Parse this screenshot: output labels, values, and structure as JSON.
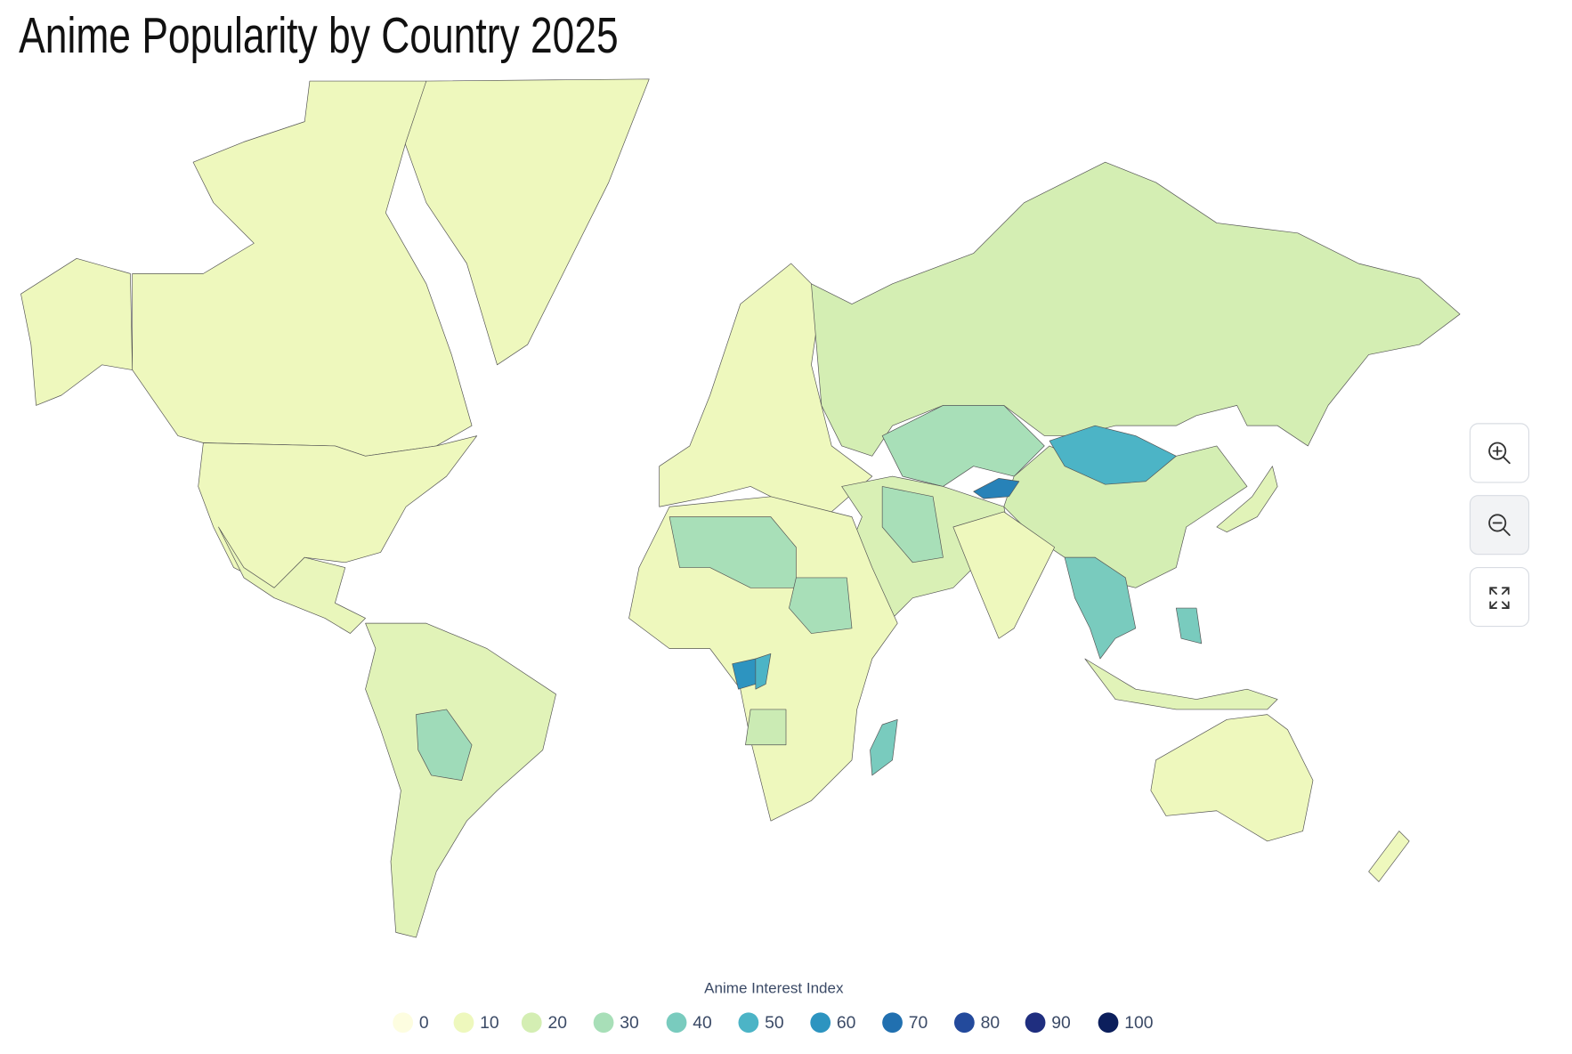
{
  "map": {
    "title": "Anime Popularity by Country 2025",
    "legend": {
      "title": "Anime Interest Index",
      "items": [
        {
          "value": 0,
          "color": "#fdfde0"
        },
        {
          "value": 10,
          "color": "#eef8bd"
        },
        {
          "value": 20,
          "color": "#d4eeb3"
        },
        {
          "value": 30,
          "color": "#a8dfb8"
        },
        {
          "value": 40,
          "color": "#79cbbe"
        },
        {
          "value": 50,
          "color": "#4cb4c6"
        },
        {
          "value": 60,
          "color": "#2d94c0"
        },
        {
          "value": 70,
          "color": "#2170b0"
        },
        {
          "value": 80,
          "color": "#234a9c"
        },
        {
          "value": 90,
          "color": "#1f2e7f"
        },
        {
          "value": 100,
          "color": "#0c1f5c"
        }
      ]
    },
    "regions": [
      {
        "value": 10
      },
      {
        "value": 10
      },
      {
        "value": 10
      },
      {
        "value": 10
      },
      {
        "value": 12
      },
      {
        "value": 15
      },
      {
        "value": 32
      },
      {
        "value": 10
      },
      {
        "value": 20
      },
      {
        "value": 30
      },
      {
        "value": 20
      },
      {
        "value": 50
      },
      {
        "value": 65
      },
      {
        "value": 18
      },
      {
        "value": 30
      },
      {
        "value": 10
      },
      {
        "value": 40
      },
      {
        "value": 10
      },
      {
        "value": 30
      },
      {
        "value": 30
      },
      {
        "value": 60
      },
      {
        "value": 50
      },
      {
        "value": 22
      },
      {
        "value": 40
      },
      {
        "value": 10
      },
      {
        "value": 15
      },
      {
        "value": 15
      },
      {
        "value": 10
      },
      {
        "value": 40
      }
    ]
  }
}
